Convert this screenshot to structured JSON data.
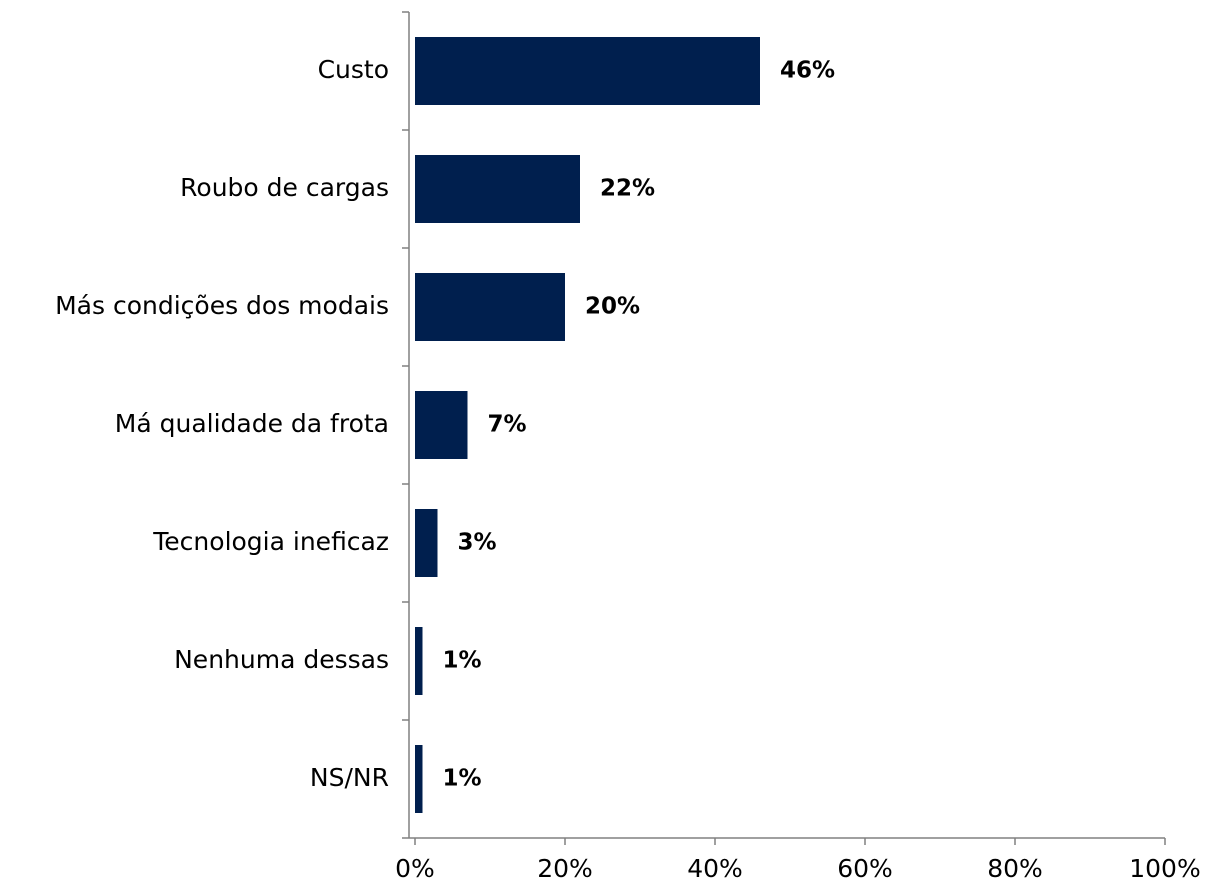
{
  "chart_data": {
    "type": "barh",
    "categories": [
      "Custo",
      "Roubo de cargas",
      "Más condições dos modais",
      "Má qualidade da frota",
      "Tecnologia ineficaz",
      "Nenhuma dessas",
      "NS/NR"
    ],
    "values": [
      46,
      22,
      20,
      7,
      3,
      1,
      1
    ],
    "value_labels": [
      "46%",
      "22%",
      "20%",
      "7%",
      "3%",
      "1%",
      "1%"
    ],
    "color": "#001f4e",
    "xlim": [
      0,
      100
    ],
    "xticks": [
      {
        "value": 0,
        "label": "0%"
      },
      {
        "value": 20,
        "label": "20%"
      },
      {
        "value": 40,
        "label": "40%"
      },
      {
        "value": 60,
        "label": "60%"
      },
      {
        "value": 80,
        "label": "80%"
      },
      {
        "value": 100,
        "label": "100%"
      }
    ]
  }
}
